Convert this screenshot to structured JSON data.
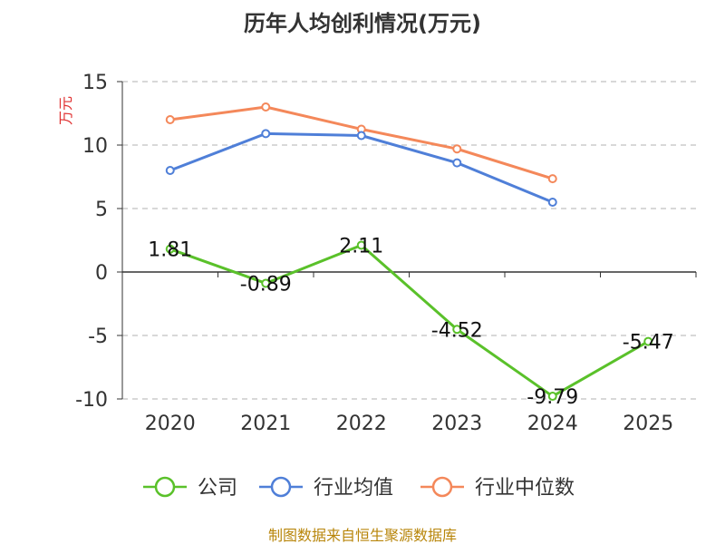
{
  "chart_data": {
    "type": "line",
    "title": "历年人均创利情况(万元)",
    "ylabel": "万元",
    "categories": [
      "2020",
      "2021",
      "2022",
      "2023",
      "2024",
      "2025"
    ],
    "ylim": [
      -10,
      15
    ],
    "yticks": [
      15,
      10,
      5,
      0,
      -5,
      -10
    ],
    "grid": true,
    "legend_position": "bottom",
    "series": [
      {
        "name": "公司",
        "color": "#5ac12a",
        "values": [
          1.81,
          -0.89,
          2.11,
          -4.52,
          -9.79,
          -5.47
        ],
        "labels": [
          "1.81",
          "-0.89",
          "2.11",
          "-4.52",
          "-9.79",
          "-5.47"
        ]
      },
      {
        "name": "行业均值",
        "color": "#4f7fd8",
        "values": [
          8.0,
          10.9,
          10.75,
          8.6,
          5.5,
          null
        ]
      },
      {
        "name": "行业中位数",
        "color": "#f4885a",
        "values": [
          12.0,
          13.0,
          11.25,
          9.7,
          7.35,
          null
        ]
      }
    ]
  },
  "source": "制图数据来自恒生聚源数据库"
}
